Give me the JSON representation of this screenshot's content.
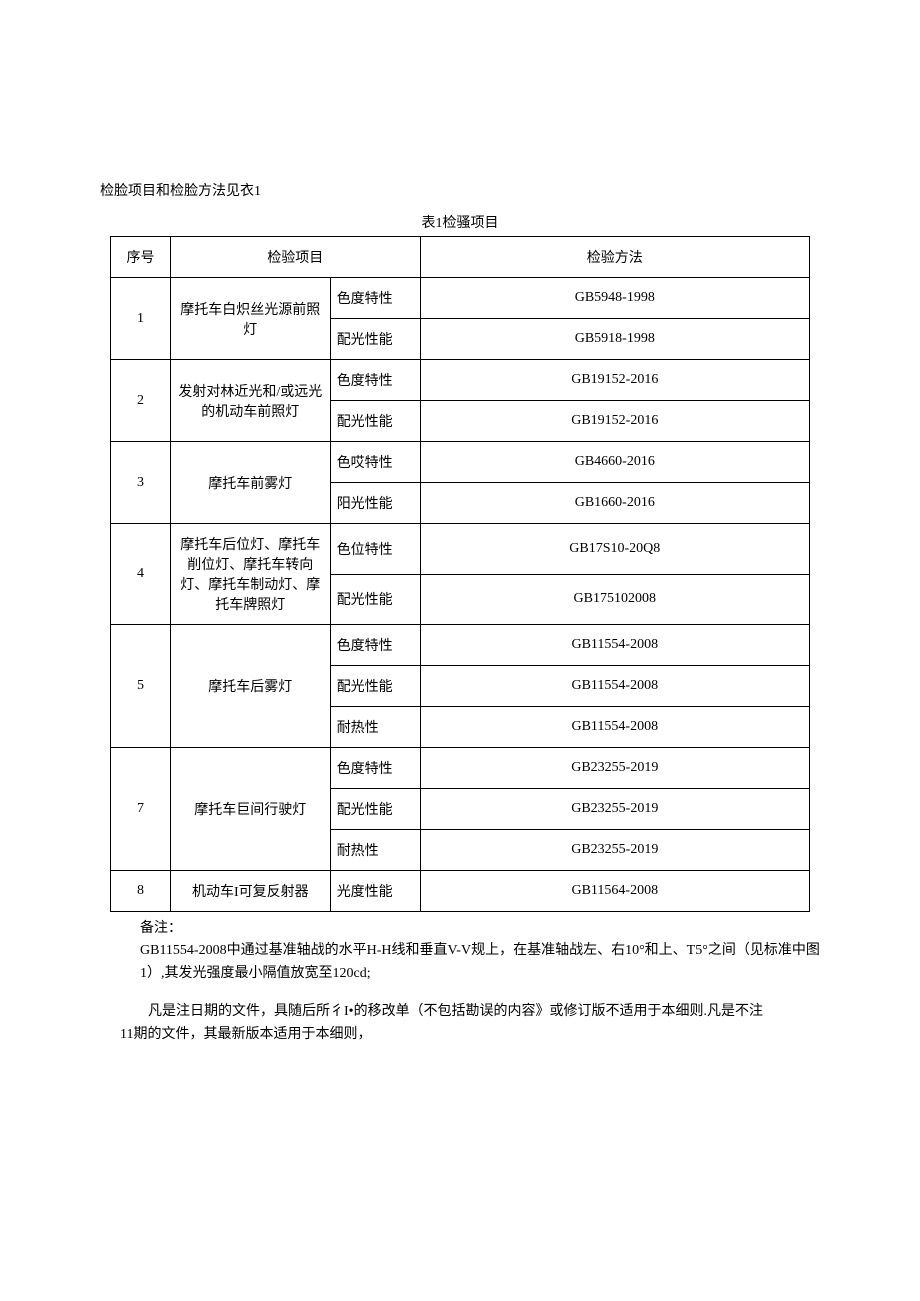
{
  "intro": "检脸项目和检脸方法见衣1",
  "caption": "表1检骚项目",
  "headers": {
    "seq": "序号",
    "item": "检验项目",
    "method": "检验方法"
  },
  "rows": [
    {
      "seq": "1",
      "item": "摩托车白炽丝光源前照灯",
      "subs": [
        {
          "prop": "色度特性",
          "method": "GB5948-1998"
        },
        {
          "prop": "配光性能",
          "method": "GB5918-1998"
        }
      ]
    },
    {
      "seq": "2",
      "item": "发射对林近光和/或远光的机动车前照灯",
      "subs": [
        {
          "prop": "色度特性",
          "method": "GB19152-2016"
        },
        {
          "prop": "配光性能",
          "method": "GB19152-2016"
        }
      ]
    },
    {
      "seq": "3",
      "item": "摩托车前雾灯",
      "subs": [
        {
          "prop": "色哎特性",
          "method": "GB4660-2016"
        },
        {
          "prop": "阳光性能",
          "method": "GB1660-2016"
        }
      ]
    },
    {
      "seq": "4",
      "item": "摩托车后位灯、摩托车削位灯、摩托车转向灯、摩托车制动灯、摩托车牌照灯",
      "subs": [
        {
          "prop": "色位特性",
          "method": "GB17S10-20Q8"
        },
        {
          "prop": "配光性能",
          "method": "GB175102008"
        }
      ]
    },
    {
      "seq": "5",
      "item": "摩托车后雾灯",
      "subs": [
        {
          "prop": "色度特性",
          "method": "GB11554-2008"
        },
        {
          "prop": "配光性能",
          "method": "GB11554-2008"
        },
        {
          "prop": "耐热性",
          "method": "GB11554-2008"
        }
      ]
    },
    {
      "seq": "7",
      "item": "摩托车巨间行驶灯",
      "subs": [
        {
          "prop": "色度特性",
          "method": "GB23255-2019"
        },
        {
          "prop": "配光性能",
          "method": "GB23255-2019"
        },
        {
          "prop": "耐热性",
          "method": "GB23255-2019"
        }
      ]
    },
    {
      "seq": "8",
      "item": "机动车I可复反射器",
      "subs": [
        {
          "prop": "光度性能",
          "method": "GB11564-2008"
        }
      ]
    }
  ],
  "note_label": "备注：",
  "note_body": "GB11554-2008中通过基准轴战的水平H-H线和垂直V-V规上，在基准轴战左、右10°和上、T5°之间（见标准中图1）,其发光强度最小隔值放宽至120cd;",
  "footer1": "凡是注日期的文件，具随后所彳I•的移改单（不包括勘误的内容》或修订版不适用于本细则.凡是不注",
  "footer2": "11期的文件，其最新版本适用于本细则，"
}
